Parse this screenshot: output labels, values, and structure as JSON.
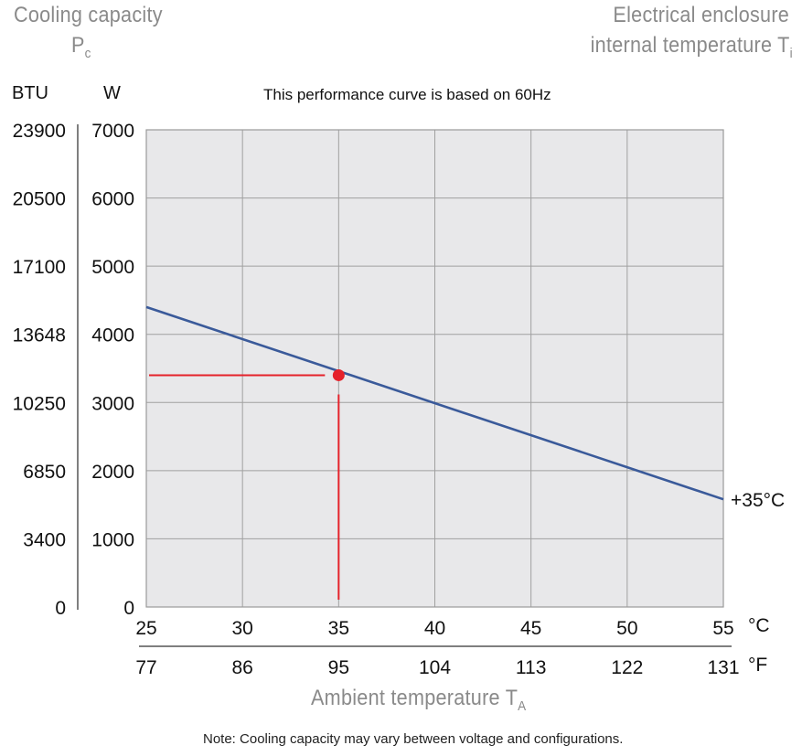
{
  "header": {
    "left_title": "Cooling capacity",
    "left_symbol": "P",
    "left_symbol_sub": "c",
    "right_title_line1": "Electrical enclosure",
    "right_title_line2": "internal temperature T",
    "right_title_sub": "i"
  },
  "units": {
    "btu": "BTU",
    "watt": "W",
    "celsius": "°C",
    "fahrenheit": "°F"
  },
  "subtitle": "This performance curve is based on 60Hz",
  "series_label": "+35°C",
  "x_title": "Ambient temperature T",
  "x_title_sub": "A",
  "note": "Note: Cooling capacity may vary between voltage and configurations.",
  "colors": {
    "curve": "#3a5a9a",
    "marker": "#e5222b",
    "plot_bg": "#e8e8ea",
    "grid": "#a0a0a0",
    "gray_text": "#8a8a8a"
  },
  "chart_data": {
    "type": "line",
    "title": "This performance curve is based on 60Hz",
    "xlabel": "Ambient temperature TA",
    "ylabel": "Cooling capacity Pc",
    "xlim": [
      25,
      55
    ],
    "ylim": [
      0,
      7000
    ],
    "x_ticks_c": [
      "25",
      "30",
      "35",
      "40",
      "45",
      "50",
      "55"
    ],
    "x_ticks_f": [
      "77",
      "86",
      "95",
      "104",
      "113",
      "122",
      "131"
    ],
    "y_ticks_w": [
      "0",
      "1000",
      "2000",
      "3000",
      "4000",
      "5000",
      "6000",
      "7000"
    ],
    "y_ticks_btu": [
      "0",
      "3400",
      "6850",
      "10250",
      "13648",
      "17100",
      "20500",
      "23900"
    ],
    "grid": true,
    "series": [
      {
        "name": "+35°C",
        "x": [
          25,
          55
        ],
        "y": [
          4400,
          1580
        ]
      }
    ],
    "marker": {
      "x": 35,
      "y": 3400
    }
  }
}
